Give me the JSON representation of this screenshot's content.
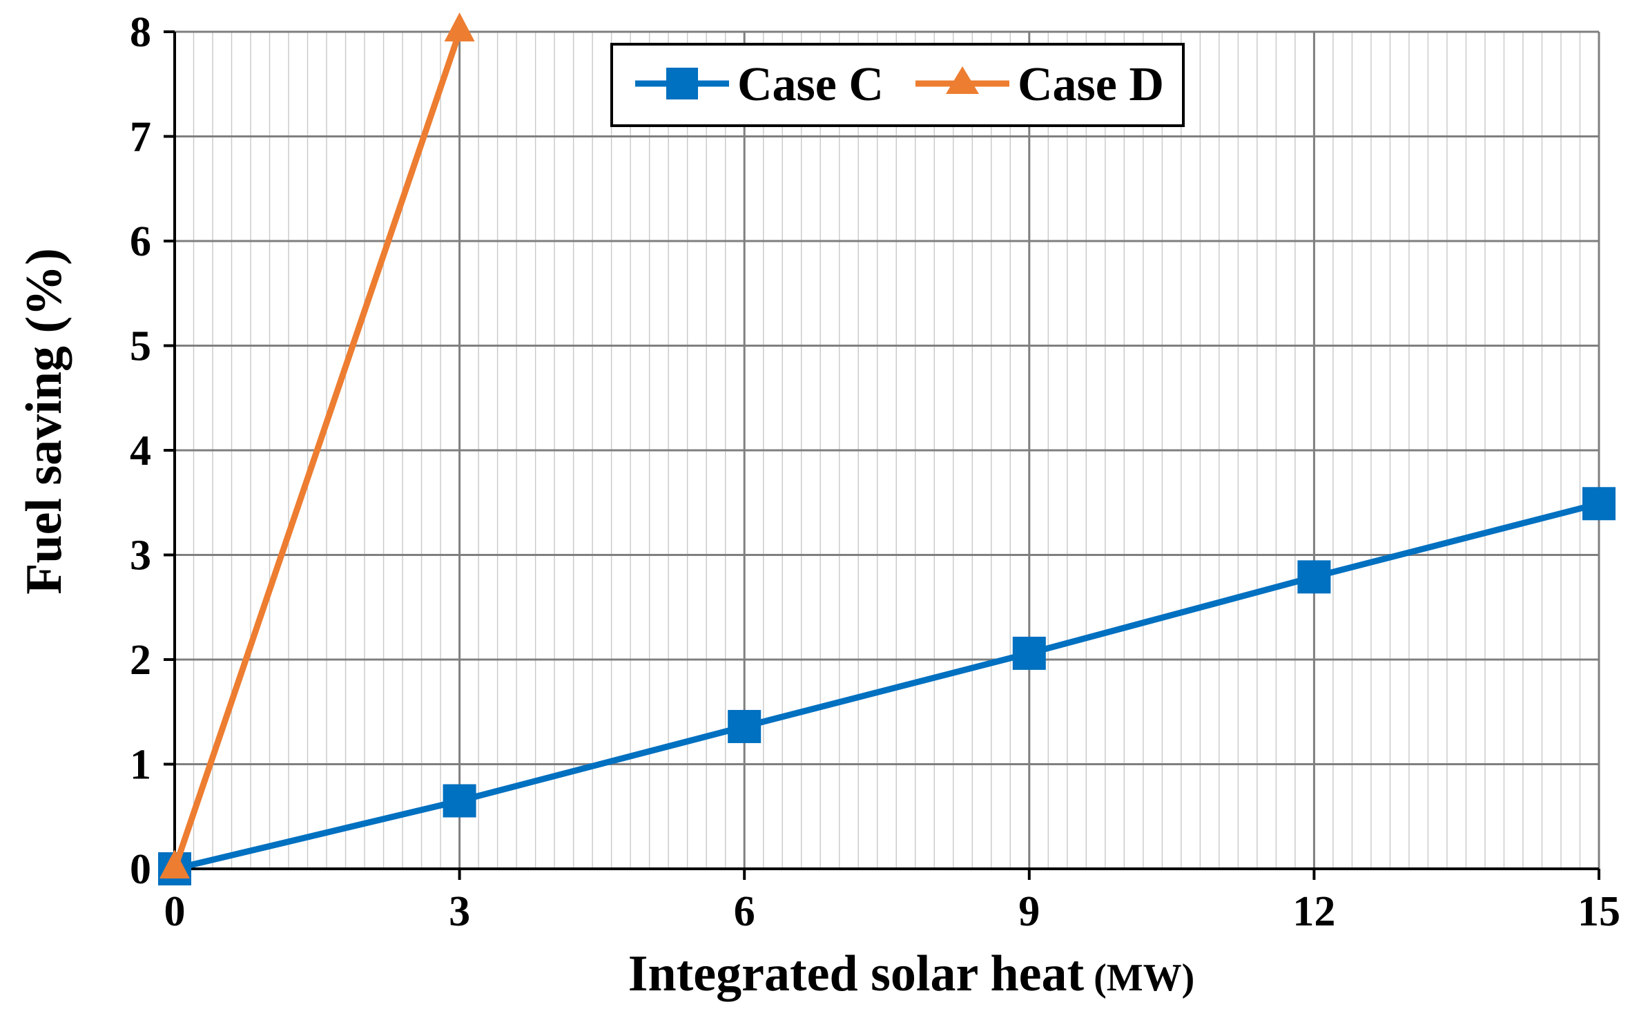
{
  "chart_data": {
    "type": "line",
    "title": "",
    "xlabel": "Integrated solar heat",
    "xlabel_unit": "(MW)",
    "ylabel": "Fuel saving (%)",
    "xlim": [
      0,
      15
    ],
    "ylim": [
      0,
      8
    ],
    "xticks": [
      0,
      3,
      6,
      9,
      12,
      15
    ],
    "yticks": [
      0,
      1,
      2,
      3,
      4,
      5,
      6,
      7,
      8
    ],
    "grid": true,
    "legend_position": "top-center",
    "series": [
      {
        "name": "Case C",
        "color": "#0070c0",
        "marker": "square",
        "x": [
          0,
          3,
          6,
          9,
          12,
          15
        ],
        "y": [
          0,
          0.65,
          1.36,
          2.06,
          2.79,
          3.49
        ]
      },
      {
        "name": "Case D",
        "color": "#ed7d31",
        "marker": "triangle",
        "x": [
          0,
          3
        ],
        "y": [
          0,
          8
        ]
      }
    ]
  }
}
